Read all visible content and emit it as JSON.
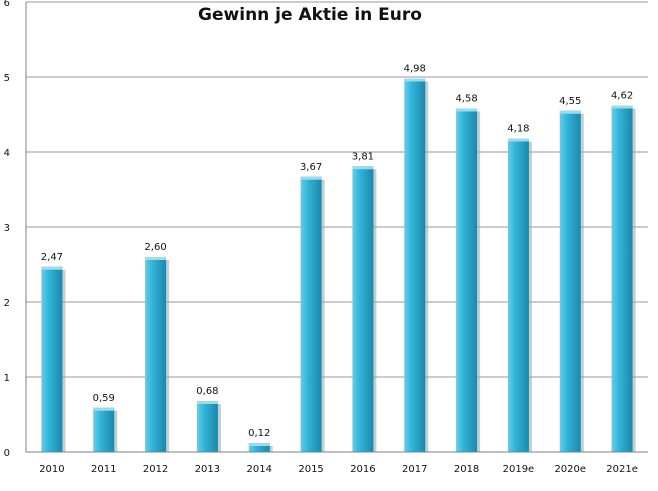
{
  "chart_data": {
    "type": "bar",
    "title": "Gewinn je Aktie in Euro",
    "xlabel": "",
    "ylabel": "",
    "categories": [
      "2010",
      "2011",
      "2012",
      "2013",
      "2014",
      "2015",
      "2016",
      "2017",
      "2018",
      "2019e",
      "2020e",
      "2021e"
    ],
    "values": [
      2.47,
      0.59,
      2.6,
      0.68,
      0.12,
      3.67,
      3.81,
      4.98,
      4.58,
      4.18,
      4.55,
      4.62
    ],
    "data_labels": [
      "2,47",
      "0,59",
      "2,60",
      "0,68",
      "0,12",
      "3,67",
      "3,81",
      "4,98",
      "4,58",
      "4,18",
      "4,55",
      "4,62"
    ],
    "y_ticks": [
      "0",
      "1",
      "2",
      "3",
      "4",
      "5",
      "6"
    ],
    "ylim": [
      0,
      6
    ],
    "grid": true,
    "legend": "none",
    "colors": {
      "bar_light": "#5fd0ee",
      "bar_mid": "#33b3d8",
      "bar_dark": "#1c88aa",
      "bar_top": "#8fe0f5",
      "bar_shadow": "#9aa3a8",
      "grid": "#9a9a9a",
      "axis": "#808080"
    }
  }
}
